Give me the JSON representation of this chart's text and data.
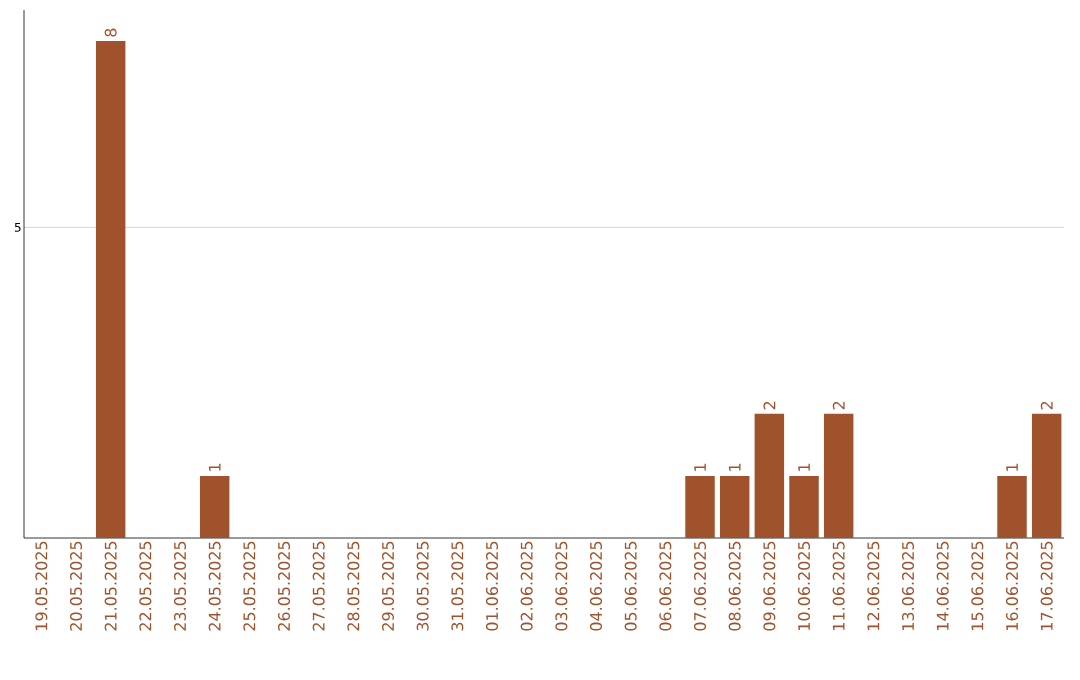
{
  "chart_data": {
    "type": "bar",
    "categories": [
      "19.05.2025",
      "20.05.2025",
      "21.05.2025",
      "22.05.2025",
      "23.05.2025",
      "24.05.2025",
      "25.05.2025",
      "26.05.2025",
      "27.05.2025",
      "28.05.2025",
      "29.05.2025",
      "30.05.2025",
      "31.05.2025",
      "01.06.2025",
      "02.06.2025",
      "03.06.2025",
      "04.06.2025",
      "05.06.2025",
      "06.06.2025",
      "07.06.2025",
      "08.06.2025",
      "09.06.2025",
      "10.06.2025",
      "11.06.2025",
      "12.06.2025",
      "13.06.2025",
      "14.06.2025",
      "15.06.2025",
      "16.06.2025",
      "17.06.2025"
    ],
    "values": [
      0,
      0,
      8,
      0,
      0,
      1,
      0,
      0,
      0,
      0,
      0,
      0,
      0,
      0,
      0,
      0,
      0,
      0,
      0,
      1,
      1,
      2,
      1,
      2,
      0,
      0,
      0,
      0,
      1,
      2
    ],
    "value_labels": [
      null,
      null,
      "8",
      null,
      null,
      "1",
      null,
      null,
      null,
      null,
      null,
      null,
      null,
      null,
      null,
      null,
      null,
      null,
      null,
      "1",
      "1",
      "2",
      "1",
      "2",
      null,
      null,
      null,
      null,
      "1",
      "2"
    ],
    "color": "#a0522d",
    "ylim": [
      0,
      8.5
    ],
    "yticks": [
      5
    ],
    "grid": "y"
  }
}
